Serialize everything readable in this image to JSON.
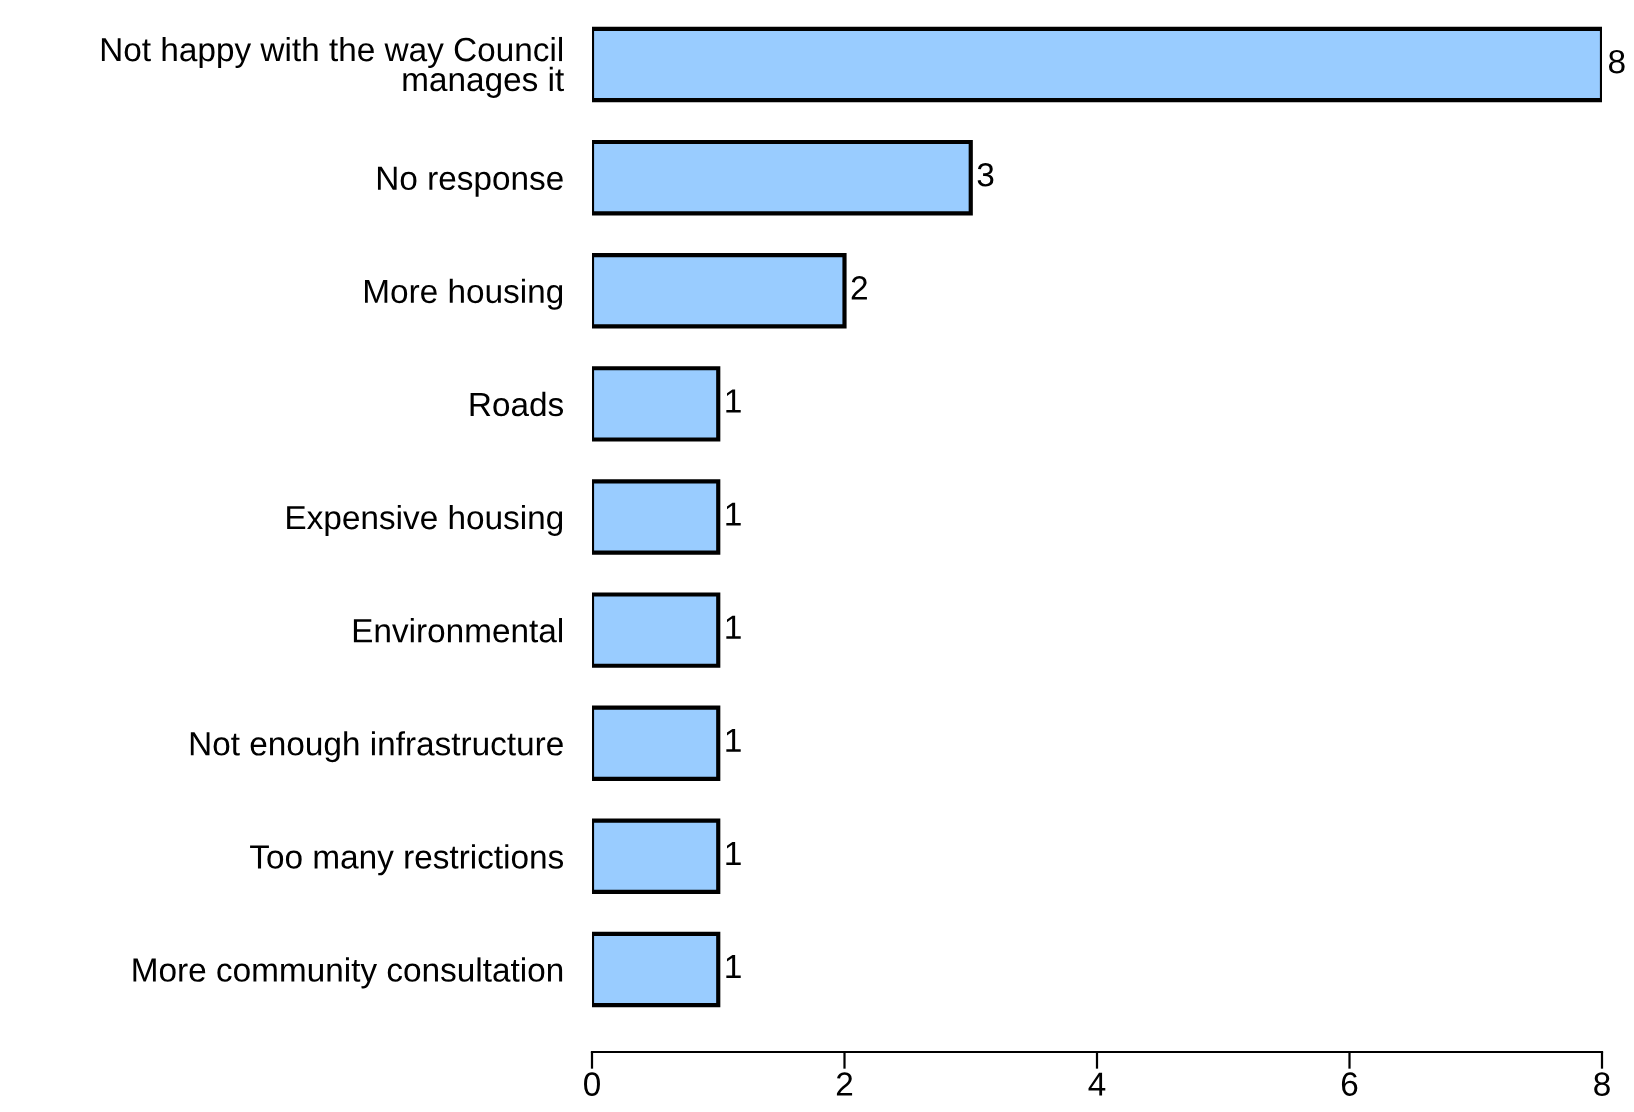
{
  "chart_data": {
    "type": "bar",
    "orientation": "horizontal",
    "categories": [
      "Not happy with the way Council\nmanages it",
      "No response",
      "More housing",
      "Roads",
      "Expensive housing",
      "Environmental",
      "Not enough infrastructure",
      "Too many restrictions",
      "More community consultation"
    ],
    "values": [
      8,
      3,
      2,
      1,
      1,
      1,
      1,
      1,
      1
    ],
    "color": "#99ccff",
    "xlim": [
      0,
      8
    ],
    "xticks": [
      0,
      2,
      4,
      6,
      8
    ],
    "data_labels": true,
    "grid": false,
    "legend": false
  }
}
